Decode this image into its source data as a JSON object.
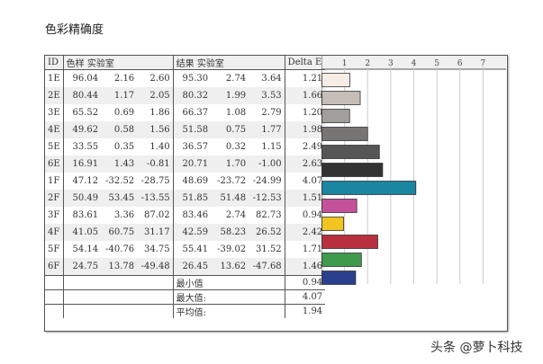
{
  "title": "色彩精确度",
  "watermark": "头条 @萝卜科技",
  "headers": {
    "id": "ID",
    "sample": "色样 实验室",
    "result": "结果 实验室",
    "delta": "Delta E"
  },
  "chart_data": {
    "type": "bar",
    "orientation": "horizontal",
    "xlim": [
      0,
      8
    ],
    "xticks": [
      "1",
      "2",
      "3",
      "4",
      "5",
      "6",
      "7"
    ],
    "grid": true,
    "categories": [
      "1E",
      "2E",
      "3E",
      "4E",
      "5E",
      "6E",
      "1F",
      "2F",
      "3F",
      "4F",
      "5F",
      "6F"
    ],
    "values": [
      1.21,
      1.66,
      1.2,
      1.98,
      2.49,
      2.63,
      4.07,
      1.51,
      0.94,
      2.42,
      1.71,
      1.46
    ],
    "colors": [
      "#f6ede7",
      "#c5bdb8",
      "#a19f9c",
      "#767573",
      "#565656",
      "#333333",
      "#1a86a0",
      "#c4529a",
      "#f1c421",
      "#b8303f",
      "#3f9a4b",
      "#2b3f8f"
    ]
  },
  "rows": [
    [
      "1E",
      "96.04",
      "2.16",
      "2.60",
      "95.30",
      "2.74",
      "3.64",
      "1.21"
    ],
    [
      "2E",
      "80.44",
      "1.17",
      "2.05",
      "80.32",
      "1.99",
      "3.53",
      "1.66"
    ],
    [
      "3E",
      "65.52",
      "0.69",
      "1.86",
      "66.37",
      "1.08",
      "2.79",
      "1.20"
    ],
    [
      "4E",
      "49.62",
      "0.58",
      "1.56",
      "51.58",
      "0.75",
      "1.77",
      "1.98"
    ],
    [
      "5E",
      "33.55",
      "0.35",
      "1.40",
      "36.57",
      "0.32",
      "1.15",
      "2.49"
    ],
    [
      "6E",
      "16.91",
      "1.43",
      "-0.81",
      "20.71",
      "1.70",
      "-1.00",
      "2.63"
    ],
    [
      "1F",
      "47.12",
      "-32.52",
      "-28.75",
      "48.69",
      "-23.72",
      "-24.99",
      "4.07"
    ],
    [
      "2F",
      "50.49",
      "53.45",
      "-13.55",
      "51.85",
      "51.48",
      "-12.53",
      "1.51"
    ],
    [
      "3F",
      "83.61",
      "3.36",
      "87.02",
      "83.46",
      "2.74",
      "82.73",
      "0.94"
    ],
    [
      "4F",
      "41.05",
      "60.75",
      "31.17",
      "42.59",
      "58.23",
      "26.52",
      "2.42"
    ],
    [
      "5F",
      "54.14",
      "-40.76",
      "34.75",
      "55.41",
      "-39.02",
      "31.52",
      "1.71"
    ],
    [
      "6F",
      "24.75",
      "13.78",
      "-49.48",
      "26.45",
      "13.62",
      "-47.68",
      "1.46"
    ]
  ],
  "summary": [
    [
      "最小值",
      "0.94"
    ],
    [
      "最大值:",
      "4.07"
    ],
    [
      "平均值:",
      "1.94"
    ]
  ]
}
